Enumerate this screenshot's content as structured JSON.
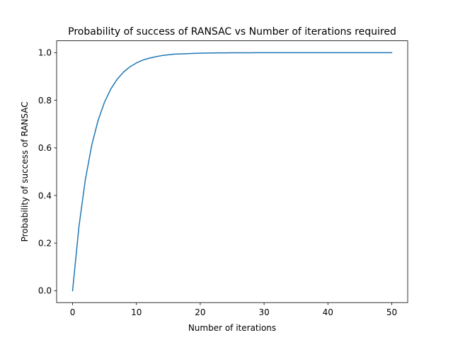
{
  "chart_data": {
    "type": "line",
    "title": "Probability of success of RANSAC vs Number of iterations required",
    "xlabel": "Number of iterations",
    "ylabel": "Probability of success of RANSAC",
    "xlim": [
      -2.5,
      52.5
    ],
    "ylim": [
      -0.05,
      1.05
    ],
    "xticks": [
      0,
      10,
      20,
      30,
      40,
      50
    ],
    "xtick_labels": [
      "0",
      "10",
      "20",
      "30",
      "40",
      "50"
    ],
    "yticks": [
      0.0,
      0.2,
      0.4,
      0.6,
      0.8,
      1.0
    ],
    "ytick_labels": [
      "0.0",
      "0.2",
      "0.4",
      "0.6",
      "0.8",
      "1.0"
    ],
    "grid": false,
    "series": [
      {
        "color": "#1f77b4",
        "x": [
          0,
          1,
          2,
          3,
          4,
          5,
          6,
          7,
          8,
          9,
          10,
          11,
          12,
          13,
          14,
          15,
          16,
          17,
          18,
          19,
          20,
          21,
          22,
          23,
          24,
          25,
          26,
          27,
          28,
          29,
          30,
          31,
          32,
          33,
          34,
          35,
          36,
          37,
          38,
          39,
          40,
          41,
          42,
          43,
          44,
          45,
          46,
          47,
          48,
          49,
          50
        ],
        "y": [
          0.0,
          0.27,
          0.467,
          0.611,
          0.716,
          0.792,
          0.848,
          0.889,
          0.919,
          0.941,
          0.957,
          0.969,
          0.977,
          0.983,
          0.988,
          0.991,
          0.994,
          0.995,
          0.996,
          0.997,
          0.998,
          0.9985,
          0.999,
          0.9993,
          0.9995,
          0.9996,
          0.9997,
          0.9998,
          0.9998,
          0.9999,
          0.9999,
          0.9999,
          1.0,
          1.0,
          1.0,
          1.0,
          1.0,
          1.0,
          1.0,
          1.0,
          1.0,
          1.0,
          1.0,
          1.0,
          1.0,
          1.0,
          1.0,
          1.0,
          1.0,
          1.0,
          1.0
        ]
      }
    ]
  }
}
